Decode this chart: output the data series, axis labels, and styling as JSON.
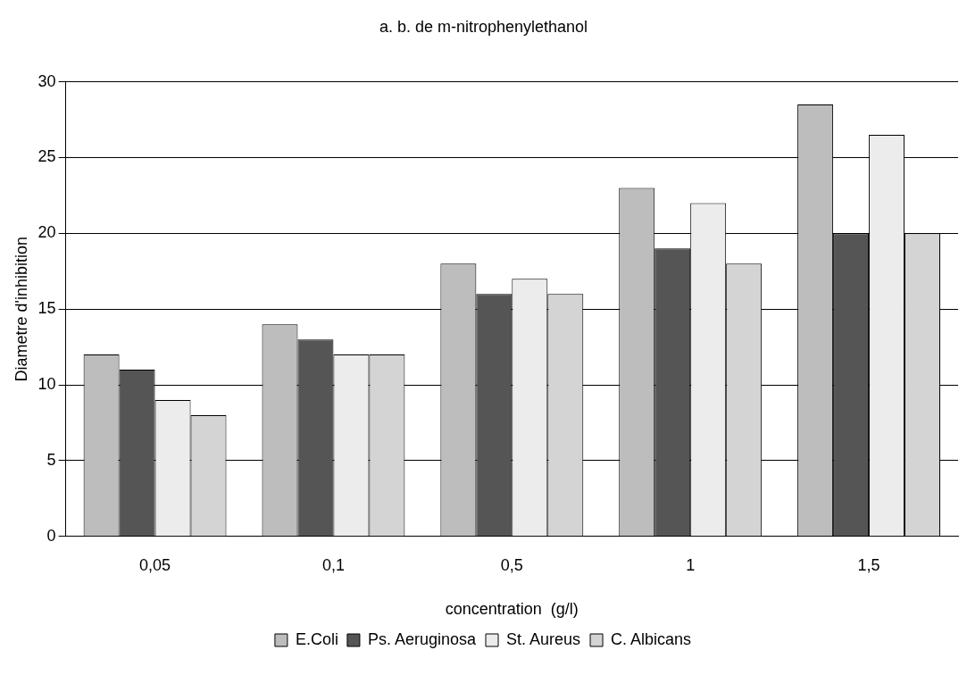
{
  "chart_data": {
    "type": "bar",
    "title": "a. b. de m-nitrophenylethanol",
    "xlabel": "concentration  (g/l)",
    "ylabel": "Diametre d'inhibition",
    "categories": [
      "0,05",
      "0,1",
      "0,5",
      "1",
      "1,5"
    ],
    "series": [
      {
        "name": "E.Coli",
        "color": "#bdbdbd",
        "values": [
          12,
          14,
          18,
          23,
          28.5
        ]
      },
      {
        "name": "Ps. Aeruginosa",
        "color": "#555555",
        "values": [
          11,
          13,
          16,
          19,
          20
        ]
      },
      {
        "name": "St. Aureus",
        "color": "#ececec",
        "values": [
          9,
          12,
          17,
          22,
          26.5
        ]
      },
      {
        "name": "C. Albicans",
        "color": "#d4d4d4",
        "values": [
          8,
          12,
          16,
          18,
          20
        ]
      }
    ],
    "ylim": [
      0,
      30
    ],
    "yticks": [
      0,
      5,
      10,
      15,
      20,
      25,
      30
    ],
    "grid": "y",
    "legend": "bottom"
  }
}
